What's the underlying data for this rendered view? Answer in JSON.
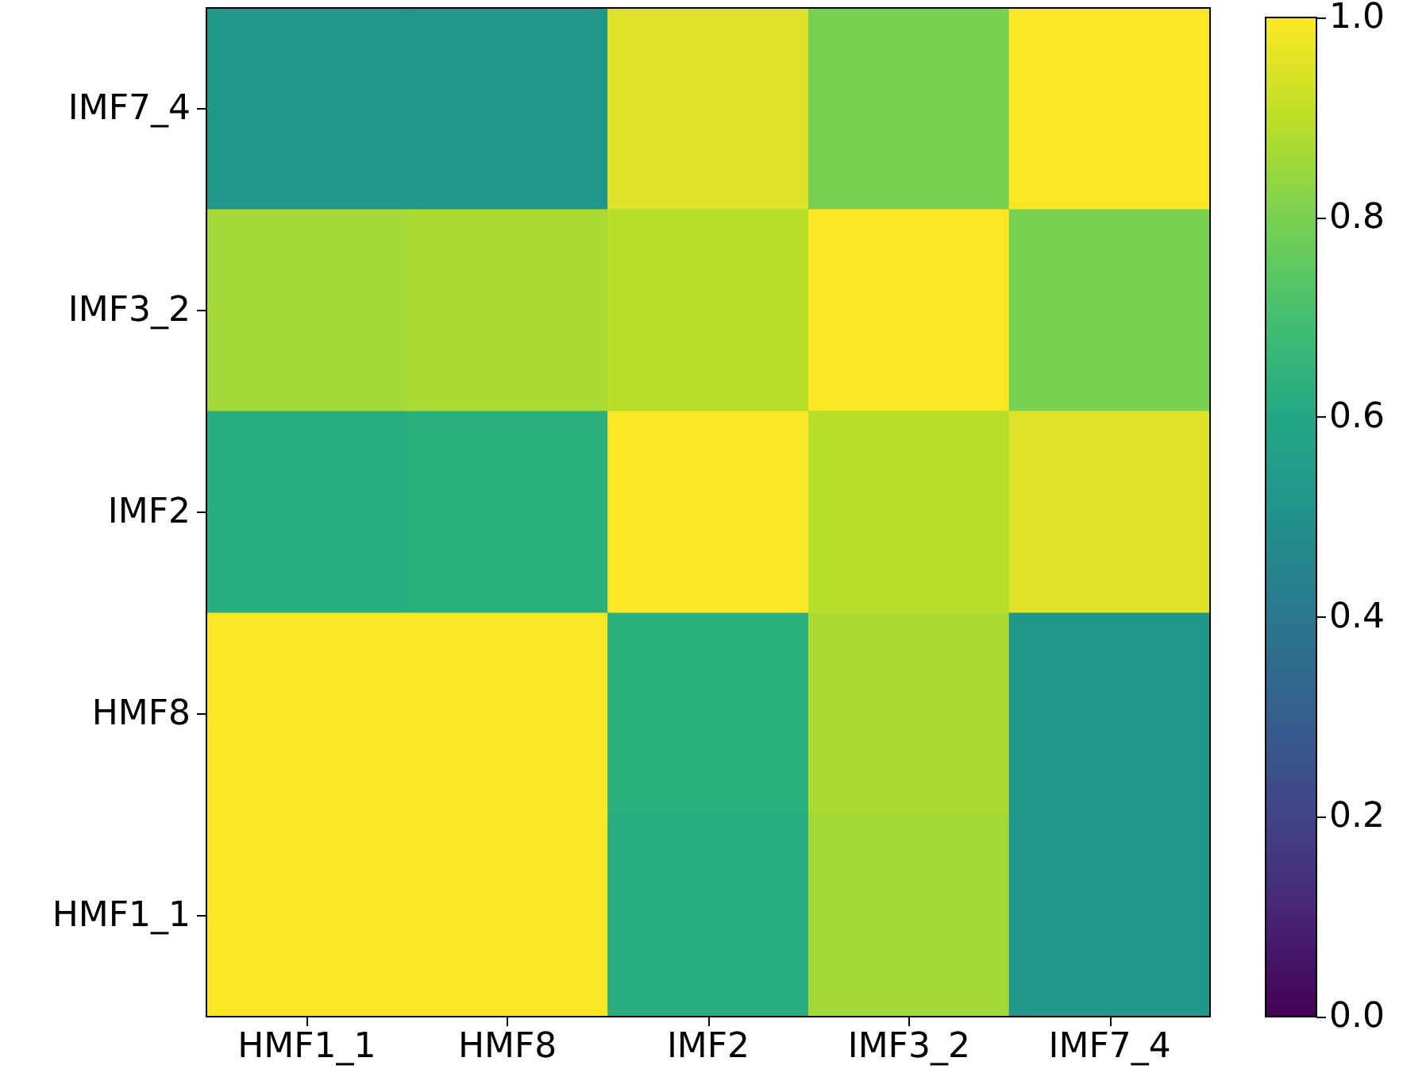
{
  "chart_data": {
    "type": "heatmap",
    "categories": [
      "HMF1_1",
      "HMF8",
      "IMF2",
      "IMF3_2",
      "IMF7_4"
    ],
    "y_categories": [
      "IMF7_4",
      "IMF3_2",
      "IMF2",
      "HMF8",
      "HMF1_1"
    ],
    "cells": [
      [
        0.52,
        0.52,
        0.95,
        0.8,
        1.0
      ],
      [
        0.86,
        0.87,
        0.89,
        1.0,
        0.8
      ],
      [
        0.62,
        0.63,
        1.0,
        0.89,
        0.95
      ],
      [
        1.0,
        1.0,
        0.63,
        0.87,
        0.52
      ],
      [
        1.0,
        1.0,
        0.62,
        0.86,
        0.52
      ]
    ],
    "clim": [
      0,
      1
    ],
    "cticks": [
      {
        "value": 0,
        "label": "0.0"
      },
      {
        "value": 0.2,
        "label": "0.2"
      },
      {
        "value": 0.4,
        "label": "0.4"
      },
      {
        "value": 0.6,
        "label": "0.6"
      },
      {
        "value": 0.8,
        "label": "0.8"
      },
      {
        "value": 1,
        "label": "1.0"
      }
    ]
  }
}
